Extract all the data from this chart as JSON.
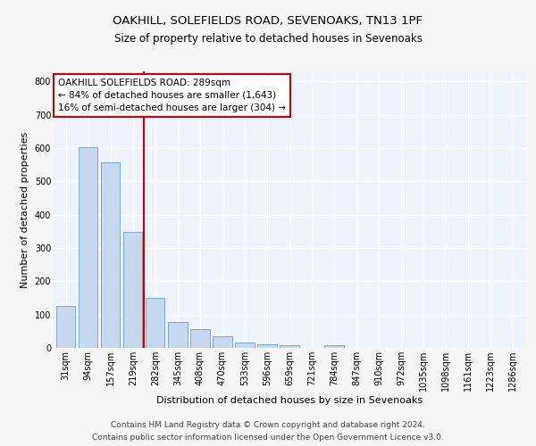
{
  "title1": "OAKHILL, SOLEFIELDS ROAD, SEVENOAKS, TN13 1PF",
  "title2": "Size of property relative to detached houses in Sevenoaks",
  "xlabel": "Distribution of detached houses by size in Sevenoaks",
  "ylabel": "Number of detached properties",
  "categories": [
    "31sqm",
    "94sqm",
    "157sqm",
    "219sqm",
    "282sqm",
    "345sqm",
    "408sqm",
    "470sqm",
    "533sqm",
    "596sqm",
    "659sqm",
    "721sqm",
    "784sqm",
    "847sqm",
    "910sqm",
    "972sqm",
    "1035sqm",
    "1098sqm",
    "1161sqm",
    "1223sqm",
    "1286sqm"
  ],
  "values": [
    125,
    603,
    557,
    348,
    150,
    78,
    57,
    34,
    16,
    12,
    8,
    0,
    8,
    0,
    0,
    0,
    0,
    0,
    0,
    0,
    0
  ],
  "bar_color": "#c5d8f0",
  "bar_edge_color": "#7aaad0",
  "vline_x": 3.5,
  "vline_color": "#cc0000",
  "annotation_text": "OAKHILL SOLEFIELDS ROAD: 289sqm\n← 84% of detached houses are smaller (1,643)\n16% of semi-detached houses are larger (304) →",
  "annotation_box_color": "#ffffff",
  "annotation_box_edge": "#cc0000",
  "ylim": [
    0,
    830
  ],
  "yticks": [
    0,
    100,
    200,
    300,
    400,
    500,
    600,
    700,
    800
  ],
  "footnote1": "Contains HM Land Registry data © Crown copyright and database right 2024.",
  "footnote2": "Contains public sector information licensed under the Open Government Licence v3.0.",
  "background_color": "#eef2fa",
  "grid_color": "#ffffff",
  "title_fontsize": 9.5,
  "subtitle_fontsize": 8.5,
  "axis_label_fontsize": 8,
  "tick_fontsize": 7,
  "annotation_fontsize": 7.5,
  "footnote_fontsize": 6.5
}
